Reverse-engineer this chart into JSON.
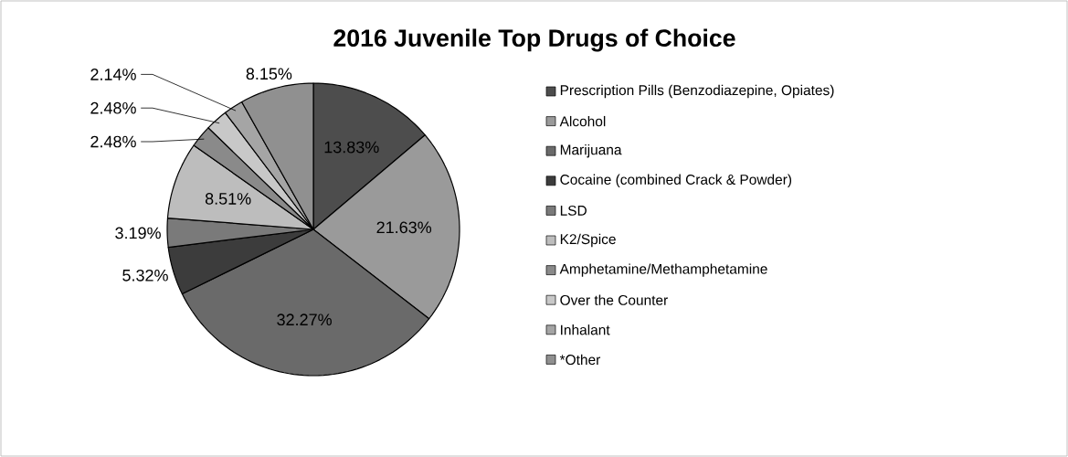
{
  "chart_data": {
    "type": "pie",
    "title": "2016 Juvenile Top Drugs of Choice",
    "categories": [
      "Prescription Pills (Benzodiazepine, Opiates)",
      "Alcohol",
      "Marijuana",
      "Cocaine (combined Crack & Powder)",
      "LSD",
      "K2/Spice",
      "Amphetamine/Methamphetamine",
      "Over the Counter",
      "Inhalant",
      "*Other"
    ],
    "values": [
      13.83,
      21.63,
      32.27,
      5.32,
      3.19,
      8.51,
      2.48,
      2.48,
      2.14,
      8.15
    ],
    "value_labels": [
      "13.83%",
      "21.63%",
      "32.27%",
      "5.32%",
      "3.19%",
      "8.51%",
      "2.48%",
      "2.48%",
      "2.14%",
      "8.15%"
    ],
    "colors": [
      "#4d4d4d",
      "#9a9a9a",
      "#6a6a6a",
      "#3c3c3c",
      "#7a7a7a",
      "#bdbdbd",
      "#8a8a8a",
      "#c8c8c8",
      "#a5a5a5",
      "#909090"
    ],
    "legend": "right"
  }
}
